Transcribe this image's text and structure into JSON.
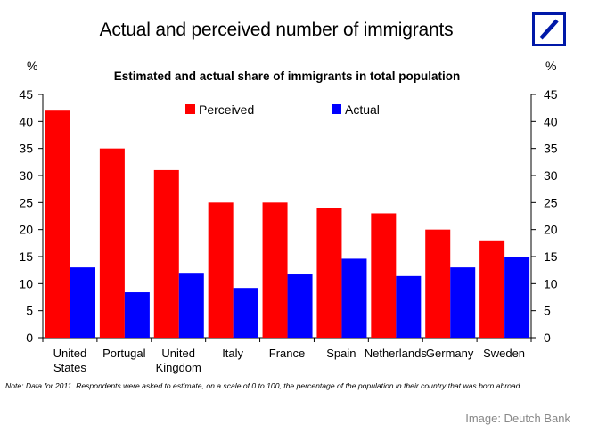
{
  "header": {
    "title": "Actual and perceived number of immigrants",
    "logo_icon": "deutsche-bank-logo"
  },
  "chart_data": {
    "type": "bar",
    "title": "Estimated and actual share of immigrants in total population",
    "ylabel_left": "%",
    "ylabel_right": "%",
    "ylim": [
      0,
      45
    ],
    "yticks": [
      0,
      5,
      10,
      15,
      20,
      25,
      30,
      35,
      40,
      45
    ],
    "categories": [
      "United States",
      "Portugal",
      "United Kingdom",
      "Italy",
      "France",
      "Spain",
      "Netherlands",
      "Germany",
      "Sweden"
    ],
    "category_lines": [
      [
        "United",
        "States"
      ],
      [
        "Portugal"
      ],
      [
        "United",
        "Kingdom"
      ],
      [
        "Italy"
      ],
      [
        "France"
      ],
      [
        "Spain"
      ],
      [
        "Netherlands"
      ],
      [
        "Germany"
      ],
      [
        "Sweden"
      ]
    ],
    "series": [
      {
        "name": "Perceived",
        "color": "#ff0000",
        "values": [
          42,
          35,
          31,
          25,
          25,
          24,
          23,
          20,
          18
        ]
      },
      {
        "name": "Actual",
        "color": "#0000ff",
        "values": [
          13,
          8.4,
          12,
          9.2,
          11.7,
          14.6,
          11.4,
          13,
          15
        ]
      }
    ],
    "legend_position": "top-center",
    "grid": false
  },
  "note": "Note: Data for 2011. Respondents were asked to estimate, on a scale of 0 to 100, the percentage of the population in their country that was born abroad.",
  "credit": "Image: Deutch Bank",
  "colors": {
    "logo": "#0018a8"
  }
}
